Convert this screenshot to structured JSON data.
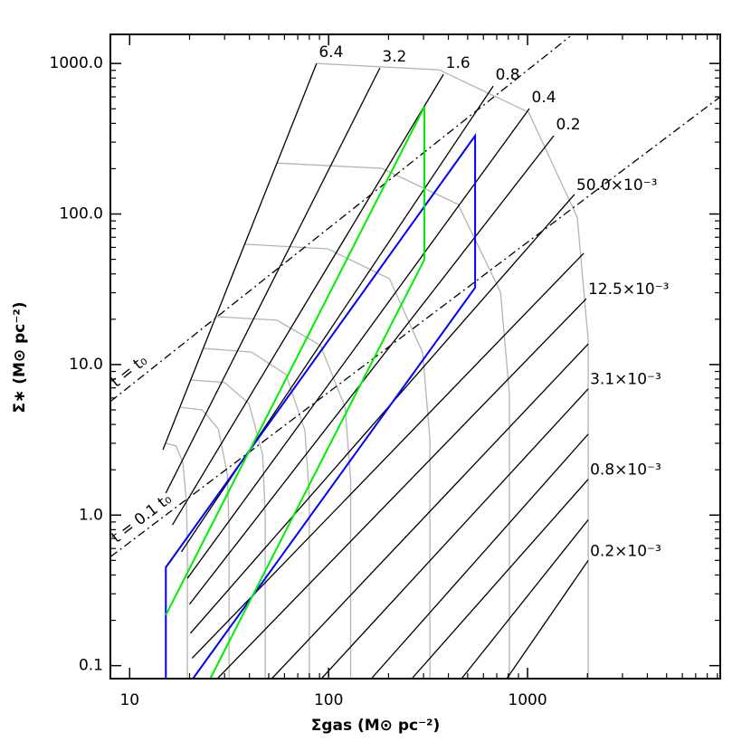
{
  "chart_data": {
    "type": "line",
    "xlabel": "Σgas (M⊙ pc⁻²)",
    "ylabel": "Σ∗ (M⊙ pc⁻²)",
    "xscale": "log",
    "yscale": "log",
    "xlim": [
      8,
      9300
    ],
    "ylim": [
      0.082,
      1560
    ],
    "xticks": [
      10,
      100,
      1000
    ],
    "yticks": [
      0.1,
      {
        "value": 1,
        "label": "1.0"
      },
      {
        "value": 10,
        "label": "10.0"
      },
      {
        "value": 100,
        "label": "100.0"
      },
      {
        "value": 1000,
        "label": "1000.0"
      }
    ],
    "xminorticks": [
      20,
      30,
      40,
      50,
      60,
      70,
      80,
      90,
      200,
      300,
      400,
      500,
      600,
      700,
      800,
      900,
      2000,
      3000,
      4000,
      5000,
      6000,
      7000,
      8000,
      9000
    ],
    "yminorticks": [
      0.2,
      0.3,
      0.4,
      0.5,
      0.6,
      0.7,
      0.8,
      0.9,
      2,
      3,
      4,
      5,
      6,
      7,
      8,
      9,
      20,
      30,
      40,
      50,
      60,
      70,
      80,
      90,
      200,
      300,
      400,
      500,
      600,
      700,
      800,
      900
    ],
    "series": [
      {
        "color": "#b4b4b4",
        "style": "solid",
        "x": [
          2018,
          2018,
          1778,
          1012,
          359,
          87
        ],
        "y": [
          0.082,
          14.5,
          95,
          474,
          907,
          1000
        ]
      },
      {
        "color": "#b4b4b4",
        "style": "solid",
        "x": [
          811,
          811,
          731,
          447,
          185,
          55
        ],
        "y": [
          0.082,
          6.3,
          30.4,
          116,
          201,
          218
        ]
      },
      {
        "color": "#b4b4b4",
        "style": "solid",
        "x": [
          323,
          323,
          297,
          202,
          99,
          37.8
        ],
        "y": [
          0.082,
          3.18,
          12.0,
          37.2,
          58.7,
          63
        ]
      },
      {
        "color": "#b4b4b4",
        "style": "solid",
        "x": [
          129,
          129,
          121,
          91,
          55,
          27.3
        ],
        "y": [
          0.082,
          1.73,
          5.2,
          13.4,
          19.7,
          20.8
        ]
      },
      {
        "color": "#b4b4b4",
        "style": "solid",
        "x": [
          80,
          80,
          76,
          61,
          41,
          23.6
        ],
        "y": [
          0.082,
          1.33,
          3.65,
          8.6,
          12.1,
          12.8
        ]
      },
      {
        "color": "#b4b4b4",
        "style": "solid",
        "x": [
          48,
          48,
          46.6,
          39.8,
          30,
          20.4
        ],
        "y": [
          0.082,
          1.01,
          2.52,
          5.5,
          7.6,
          7.9
        ]
      },
      {
        "color": "#b4b4b4",
        "style": "solid",
        "x": [
          31.6,
          31.6,
          31,
          27.9,
          23.1,
          18
        ],
        "y": [
          0.082,
          0.81,
          1.85,
          3.75,
          5.0,
          5.2
        ]
      },
      {
        "color": "#b4b4b4",
        "style": "solid",
        "x": [
          19.5,
          19.5,
          19.3,
          18.5,
          17.1,
          15.2
        ],
        "y": [
          0.082,
          0.6,
          1.22,
          2.24,
          2.88,
          3.0
        ]
      },
      {
        "color": "#000000",
        "style": "solid",
        "label": "6.4",
        "x": [
          14.7,
          87
        ],
        "y": [
          2.72,
          1000
        ]
      },
      {
        "color": "#000000",
        "style": "solid",
        "label": "3.2",
        "x": [
          15.2,
          181
        ],
        "y": [
          1.4,
          933
        ]
      },
      {
        "color": "#000000",
        "style": "solid",
        "label": "1.6",
        "x": [
          16.4,
          378
        ],
        "y": [
          0.86,
          847
        ]
      },
      {
        "color": "#000000",
        "style": "solid",
        "label": "0.8",
        "x": [
          18.2,
          672
        ],
        "y": [
          0.57,
          708
        ]
      },
      {
        "color": "#000000",
        "style": "solid",
        "label": "0.4",
        "x": [
          19.5,
          1021
        ],
        "y": [
          0.38,
          501
        ]
      },
      {
        "color": "#000000",
        "style": "solid",
        "label": "0.2",
        "x": [
          20.0,
          1355
        ],
        "y": [
          0.256,
          331
        ]
      },
      {
        "color": "#000000",
        "style": "solid",
        "label": "50.0×10⁻³",
        "x": [
          20.2,
          1722
        ],
        "y": [
          0.164,
          135
        ]
      },
      {
        "color": "#000000",
        "style": "solid",
        "x": [
          20.6,
          1914
        ],
        "y": [
          0.112,
          54.8
        ]
      },
      {
        "color": "#000000",
        "style": "solid",
        "label": "12.5×10⁻³",
        "x": [
          27.6,
          1974
        ],
        "y": [
          0.082,
          27.4
        ]
      },
      {
        "color": "#000000",
        "style": "solid",
        "x": [
          51.8,
          2018
        ],
        "y": [
          0.082,
          13.7
        ]
      },
      {
        "color": "#000000",
        "style": "solid",
        "label": "3.1×10⁻³",
        "x": [
          92,
          2018
        ],
        "y": [
          0.082,
          6.9
        ]
      },
      {
        "color": "#000000",
        "style": "solid",
        "x": [
          164,
          2018
        ],
        "y": [
          0.082,
          3.45
        ]
      },
      {
        "color": "#000000",
        "style": "solid",
        "label": "0.8×10⁻³",
        "x": [
          262,
          2018
        ],
        "y": [
          0.082,
          1.73
        ]
      },
      {
        "color": "#000000",
        "style": "solid",
        "x": [
          466,
          2018
        ],
        "y": [
          0.082,
          0.93
        ]
      },
      {
        "color": "#000000",
        "style": "solid",
        "label": "0.2×10⁻³",
        "x": [
          786,
          2018
        ],
        "y": [
          0.082,
          0.5
        ]
      },
      {
        "color": "#000000",
        "style": "dashdot",
        "label": "t = t₀",
        "x": [
          8.03,
          1637
        ],
        "y": [
          5.7,
          1514
        ]
      },
      {
        "color": "#000000",
        "style": "dashdot",
        "label": "t = 0.1 t₀",
        "x": [
          8.03,
          9300
        ],
        "y": [
          0.53,
          600
        ]
      },
      {
        "color": "#0000ff",
        "style": "solid",
        "width": 2,
        "x": [
          15.2,
          15.2,
          545,
          545,
          20.8
        ],
        "y": [
          0.082,
          0.45,
          331,
          32.4,
          0.082
        ]
      },
      {
        "color": "#00ee00",
        "style": "solid",
        "width": 2,
        "x": [
          25.4,
          303,
          303,
          15.2
        ],
        "y": [
          0.082,
          49.8,
          515,
          0.217
        ]
      }
    ]
  }
}
